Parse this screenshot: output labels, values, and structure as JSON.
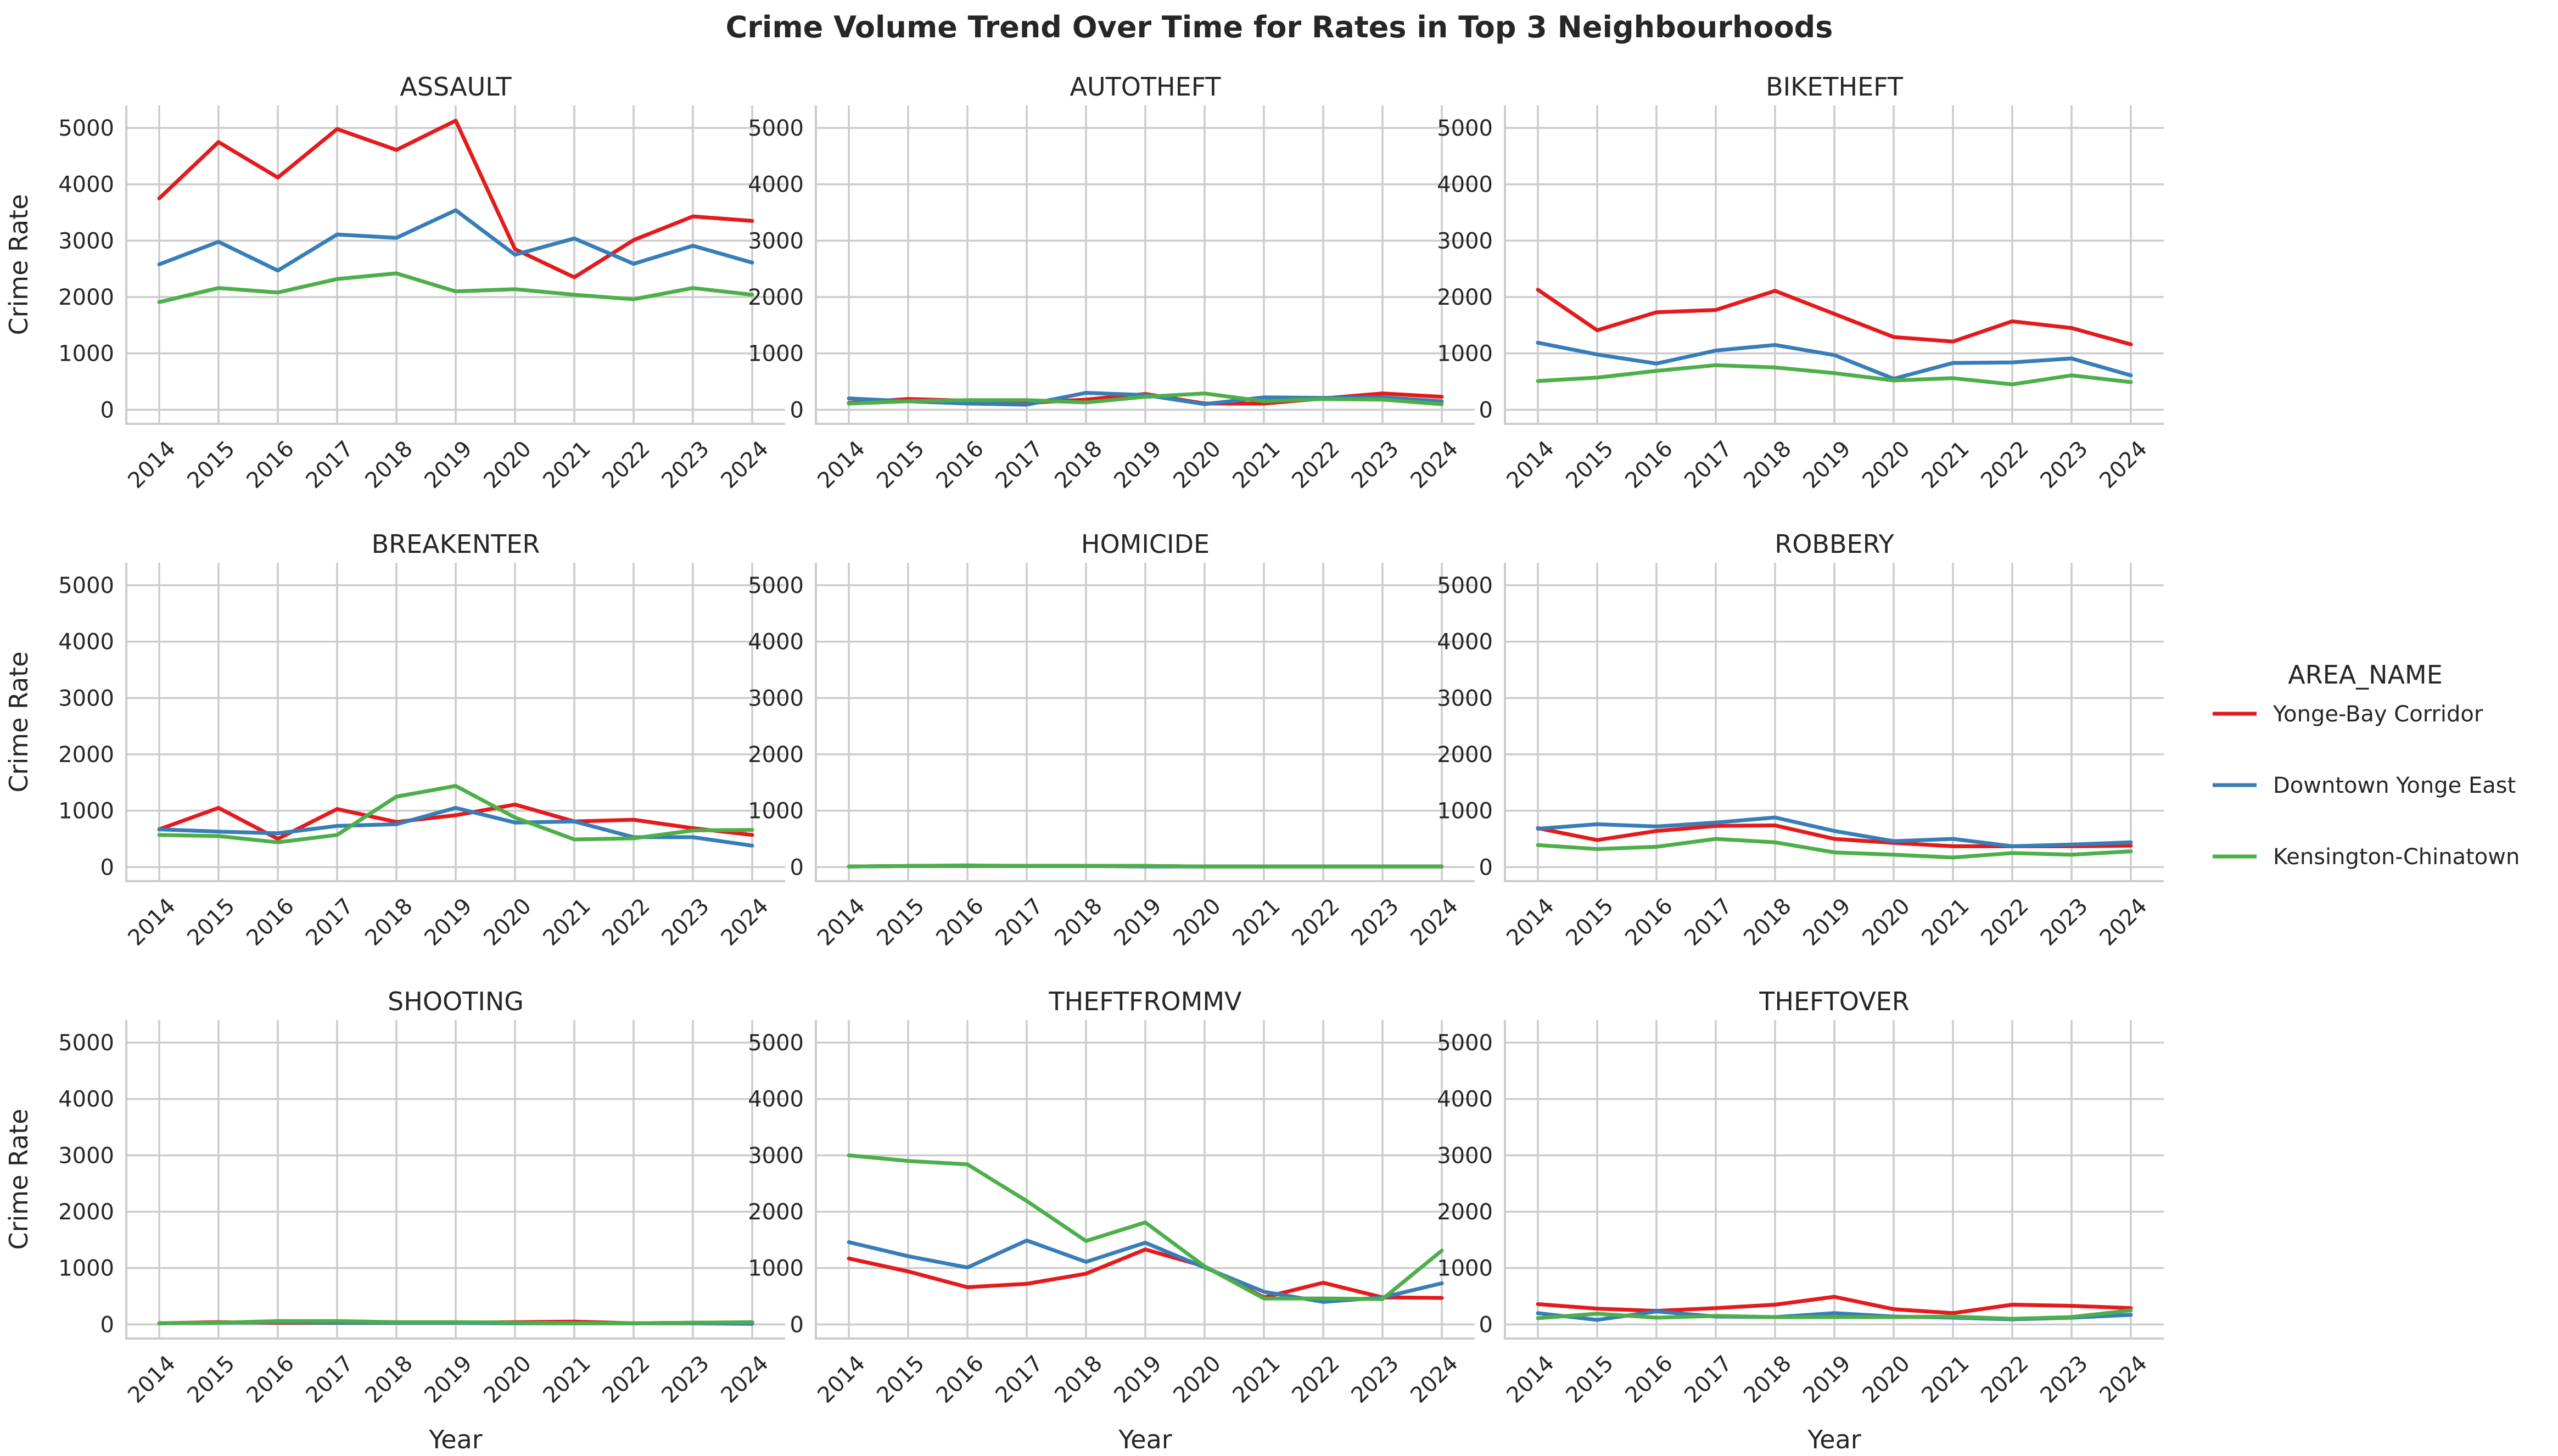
{
  "chart_data": {
    "type": "line",
    "title": "Crime Volume Trend Over Time for Rates in Top 3 Neighbourhoods",
    "xlabel": "Year",
    "ylabel": "Crime Rate",
    "x": [
      2014,
      2015,
      2016,
      2017,
      2018,
      2019,
      2020,
      2021,
      2022,
      2023,
      2024
    ],
    "x_tick_labels": [
      "2014",
      "2015",
      "2016",
      "2017",
      "2018",
      "2019",
      "2020",
      "2021",
      "2022",
      "2023",
      "2024"
    ],
    "ylim": [
      -250,
      5400
    ],
    "y_ticks": [
      0,
      1000,
      2000,
      3000,
      4000,
      5000
    ],
    "y_tick_labels": [
      "0",
      "1000",
      "2000",
      "3000",
      "4000",
      "5000"
    ],
    "grid": true,
    "legend": {
      "title": "AREA_NAME",
      "placement": "right",
      "entries": [
        {
          "name": "Yonge-Bay Corridor",
          "color": "#e41a1c"
        },
        {
          "name": "Downtown Yonge East",
          "color": "#377eb8"
        },
        {
          "name": "Kensington-Chinatown",
          "color": "#4daf4a"
        }
      ]
    },
    "panels": [
      {
        "title": "ASSAULT",
        "series": [
          {
            "name": "Yonge-Bay Corridor",
            "values": [
              3750,
              4750,
              4120,
              4980,
              4610,
              5130,
              2850,
              2350,
              3010,
              3430,
              3350
            ]
          },
          {
            "name": "Downtown Yonge East",
            "values": [
              2580,
              2980,
              2470,
              3110,
              3050,
              3540,
              2750,
              3040,
              2590,
              2910,
              2610
            ]
          },
          {
            "name": "Kensington-Chinatown",
            "values": [
              1910,
              2160,
              2080,
              2320,
              2420,
              2100,
              2140,
              2040,
              1960,
              2160,
              2040
            ]
          }
        ]
      },
      {
        "title": "AUTOTHEFT",
        "series": [
          {
            "name": "Yonge-Bay Corridor",
            "values": [
              120,
              190,
              160,
              120,
              180,
              280,
              110,
              110,
              200,
              290,
              230
            ]
          },
          {
            "name": "Downtown Yonge East",
            "values": [
              200,
              150,
              110,
              90,
              300,
              260,
              100,
              220,
              210,
              220,
              150
            ]
          },
          {
            "name": "Kensington-Chinatown",
            "values": [
              110,
              150,
              170,
              170,
              130,
              230,
              290,
              150,
              190,
              180,
              100
            ]
          }
        ]
      },
      {
        "title": "BIKETHEFT",
        "series": [
          {
            "name": "Yonge-Bay Corridor",
            "values": [
              2130,
              1410,
              1730,
              1770,
              2110,
              1700,
              1290,
              1210,
              1570,
              1450,
              1160
            ]
          },
          {
            "name": "Downtown Yonge East",
            "values": [
              1190,
              980,
              820,
              1050,
              1150,
              970,
              550,
              830,
              840,
              910,
              610
            ]
          },
          {
            "name": "Kensington-Chinatown",
            "values": [
              510,
              570,
              690,
              790,
              750,
              650,
              520,
              560,
              450,
              610,
              490
            ]
          }
        ]
      },
      {
        "title": "BREAKENTER",
        "series": [
          {
            "name": "Yonge-Bay Corridor",
            "values": [
              670,
              1050,
              500,
              1030,
              800,
              920,
              1110,
              810,
              840,
              690,
              570
            ]
          },
          {
            "name": "Downtown Yonge East",
            "values": [
              670,
              630,
              600,
              730,
              760,
              1050,
              790,
              810,
              530,
              530,
              380
            ]
          },
          {
            "name": "Kensington-Chinatown",
            "values": [
              570,
              550,
              440,
              570,
              1250,
              1440,
              880,
              490,
              510,
              650,
              660
            ]
          }
        ]
      },
      {
        "title": "HOMICIDE",
        "series": [
          {
            "name": "Yonge-Bay Corridor",
            "values": [
              10,
              20,
              20,
              20,
              20,
              20,
              10,
              10,
              10,
              10,
              10
            ]
          },
          {
            "name": "Downtown Yonge East",
            "values": [
              10,
              20,
              20,
              20,
              20,
              10,
              10,
              10,
              10,
              10,
              10
            ]
          },
          {
            "name": "Kensington-Chinatown",
            "values": [
              10,
              20,
              30,
              20,
              20,
              20,
              10,
              10,
              10,
              10,
              10
            ]
          }
        ]
      },
      {
        "title": "ROBBERY",
        "series": [
          {
            "name": "Yonge-Bay Corridor",
            "values": [
              690,
              480,
              640,
              730,
              740,
              500,
              430,
              370,
              370,
              370,
              380
            ]
          },
          {
            "name": "Downtown Yonge East",
            "values": [
              680,
              760,
              720,
              790,
              880,
              640,
              460,
              500,
              370,
              400,
              440
            ]
          },
          {
            "name": "Kensington-Chinatown",
            "values": [
              390,
              320,
              360,
              500,
              440,
              260,
              220,
              170,
              250,
              220,
              280
            ]
          }
        ]
      },
      {
        "title": "SHOOTING",
        "series": [
          {
            "name": "Yonge-Bay Corridor",
            "values": [
              20,
              40,
              30,
              30,
              30,
              30,
              40,
              50,
              20,
              30,
              30
            ]
          },
          {
            "name": "Downtown Yonge East",
            "values": [
              20,
              30,
              40,
              30,
              30,
              30,
              20,
              20,
              20,
              20,
              10
            ]
          },
          {
            "name": "Kensington-Chinatown",
            "values": [
              20,
              30,
              60,
              60,
              40,
              40,
              30,
              20,
              20,
              30,
              40
            ]
          }
        ]
      },
      {
        "title": "THEFTFROMMV",
        "series": [
          {
            "name": "Yonge-Bay Corridor",
            "values": [
              1170,
              940,
              660,
              720,
              900,
              1330,
              1030,
              480,
              740,
              480,
              470
            ]
          },
          {
            "name": "Downtown Yonge East",
            "values": [
              1460,
              1210,
              1010,
              1490,
              1110,
              1450,
              1010,
              580,
              400,
              480,
              730
            ]
          },
          {
            "name": "Kensington-Chinatown",
            "values": [
              3000,
              2900,
              2840,
              2190,
              1480,
              1810,
              1030,
              460,
              460,
              450,
              1310
            ]
          }
        ]
      },
      {
        "title": "THEFTOVER",
        "series": [
          {
            "name": "Yonge-Bay Corridor",
            "values": [
              360,
              280,
              240,
              290,
              350,
              490,
              270,
              200,
              350,
              330,
              290
            ]
          },
          {
            "name": "Downtown Yonge East",
            "values": [
              200,
              80,
              230,
              140,
              130,
              200,
              140,
              120,
              90,
              120,
              170
            ]
          },
          {
            "name": "Kensington-Chinatown",
            "values": [
              110,
              190,
              120,
              150,
              130,
              130,
              130,
              140,
              100,
              130,
              250
            ]
          }
        ]
      }
    ]
  }
}
